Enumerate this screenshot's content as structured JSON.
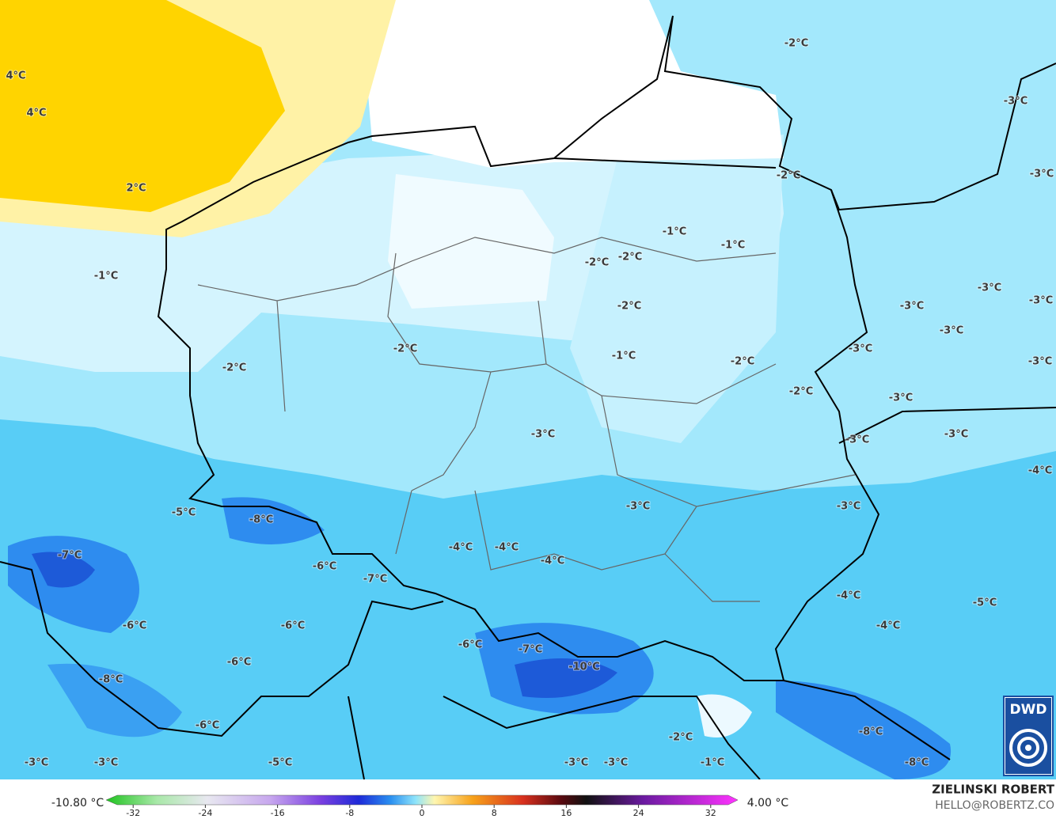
{
  "map": {
    "labels": [
      "-2°C",
      "-3°C",
      "4°C",
      "4°C",
      "2°C",
      "-2°C",
      "-3°C",
      "-1°C",
      "-1°C",
      "-2°C",
      "-2°C",
      "-1°C",
      "-3°C",
      "-3°C",
      "-3°C",
      "-2°C",
      "-3°C",
      "-2°C",
      "-3°C",
      "-1°C",
      "-2°C",
      "-3°C",
      "-2°C",
      "-2°C",
      "-3°C",
      "-3°C",
      "-3°C",
      "-3°C",
      "-4°C",
      "-3°C",
      "-3°C",
      "-5°C",
      "-8°C",
      "-4°C",
      "-4°C",
      "-7°C",
      "-4°C",
      "-6°C",
      "-7°C",
      "-4°C",
      "-5°C",
      "-6°C",
      "-6°C",
      "-4°C",
      "-6°C",
      "-7°C",
      "-6°C",
      "-10°C",
      "-8°C",
      "-6°C",
      "-8°C",
      "-2°C",
      "-3°C",
      "-3°C",
      "-5°C",
      "-3°C",
      "-3°C",
      "-1°C",
      "-8°C"
    ]
  },
  "legend": {
    "min_label": "-10.80 °C",
    "max_label": "4.00 °C",
    "range": [
      -35,
      35
    ],
    "ticks": [
      -32,
      -24,
      -16,
      -8,
      0,
      8,
      16,
      24,
      32
    ]
  },
  "credits": {
    "author": "ZIELINSKI ROBERT",
    "email": "HELLO@ROBERTZ.CO",
    "logo": "DWD"
  }
}
